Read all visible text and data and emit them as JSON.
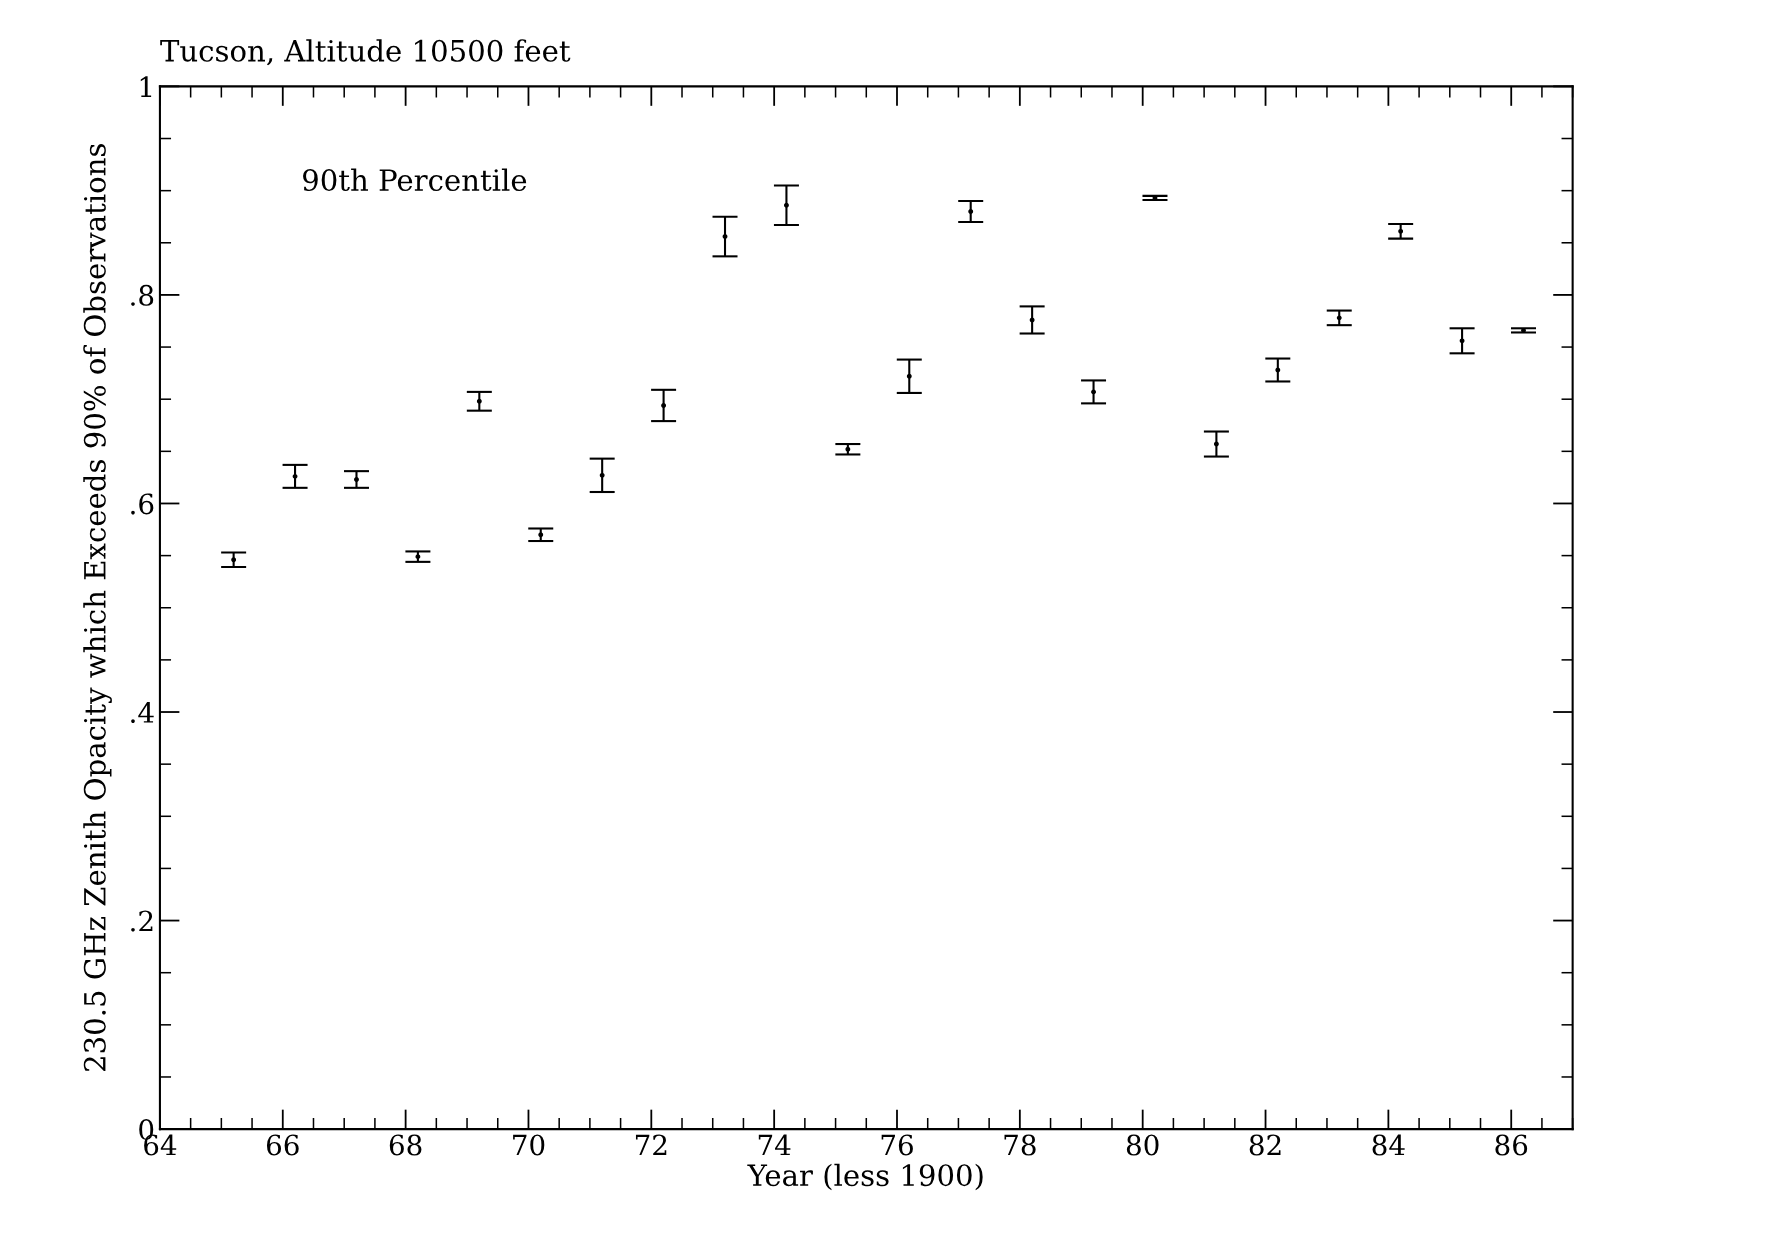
{
  "chart_data": {
    "type": "scatter",
    "title": "Tucson, Altitude 10500 feet",
    "xlabel": "Year (less 1900)",
    "ylabel": "230.5 GHz Zenith Opacity which Exceeds 90% of Observations",
    "annotations": [
      "90th Percentile"
    ],
    "x": [
      65.2,
      66.2,
      67.2,
      68.2,
      69.2,
      70.2,
      71.2,
      72.2,
      73.2,
      74.2,
      75.2,
      76.2,
      77.2,
      78.2,
      79.2,
      80.2,
      81.2,
      82.2,
      83.2,
      84.2,
      85.2,
      86.2
    ],
    "series": [
      {
        "color": "#000000",
        "values": [
          0.546,
          0.626,
          0.623,
          0.549,
          0.698,
          0.57,
          0.627,
          0.694,
          0.856,
          0.886,
          0.652,
          0.722,
          0.88,
          0.776,
          0.707,
          0.893,
          0.657,
          0.728,
          0.778,
          0.861,
          0.756,
          0.766
        ],
        "errors": [
          0.007,
          0.011,
          0.008,
          0.005,
          0.009,
          0.006,
          0.016,
          0.015,
          0.019,
          0.019,
          0.005,
          0.016,
          0.01,
          0.013,
          0.011,
          0.002,
          0.012,
          0.011,
          0.007,
          0.007,
          0.012,
          0.002
        ]
      }
    ],
    "marker": "circle",
    "grid": false,
    "xlim": [
      64,
      87
    ],
    "xticks": [
      64,
      66,
      68,
      70,
      72,
      74,
      76,
      78,
      80,
      82,
      84,
      86
    ],
    "ylim": [
      0,
      1
    ],
    "yticks": [
      0,
      {
        "value": 0.2,
        "label": ".2"
      },
      {
        "value": 0.4,
        "label": ".4"
      },
      {
        "value": 0.6,
        "label": ".6"
      },
      {
        "value": 0.8,
        "label": ".8"
      },
      1
    ]
  }
}
